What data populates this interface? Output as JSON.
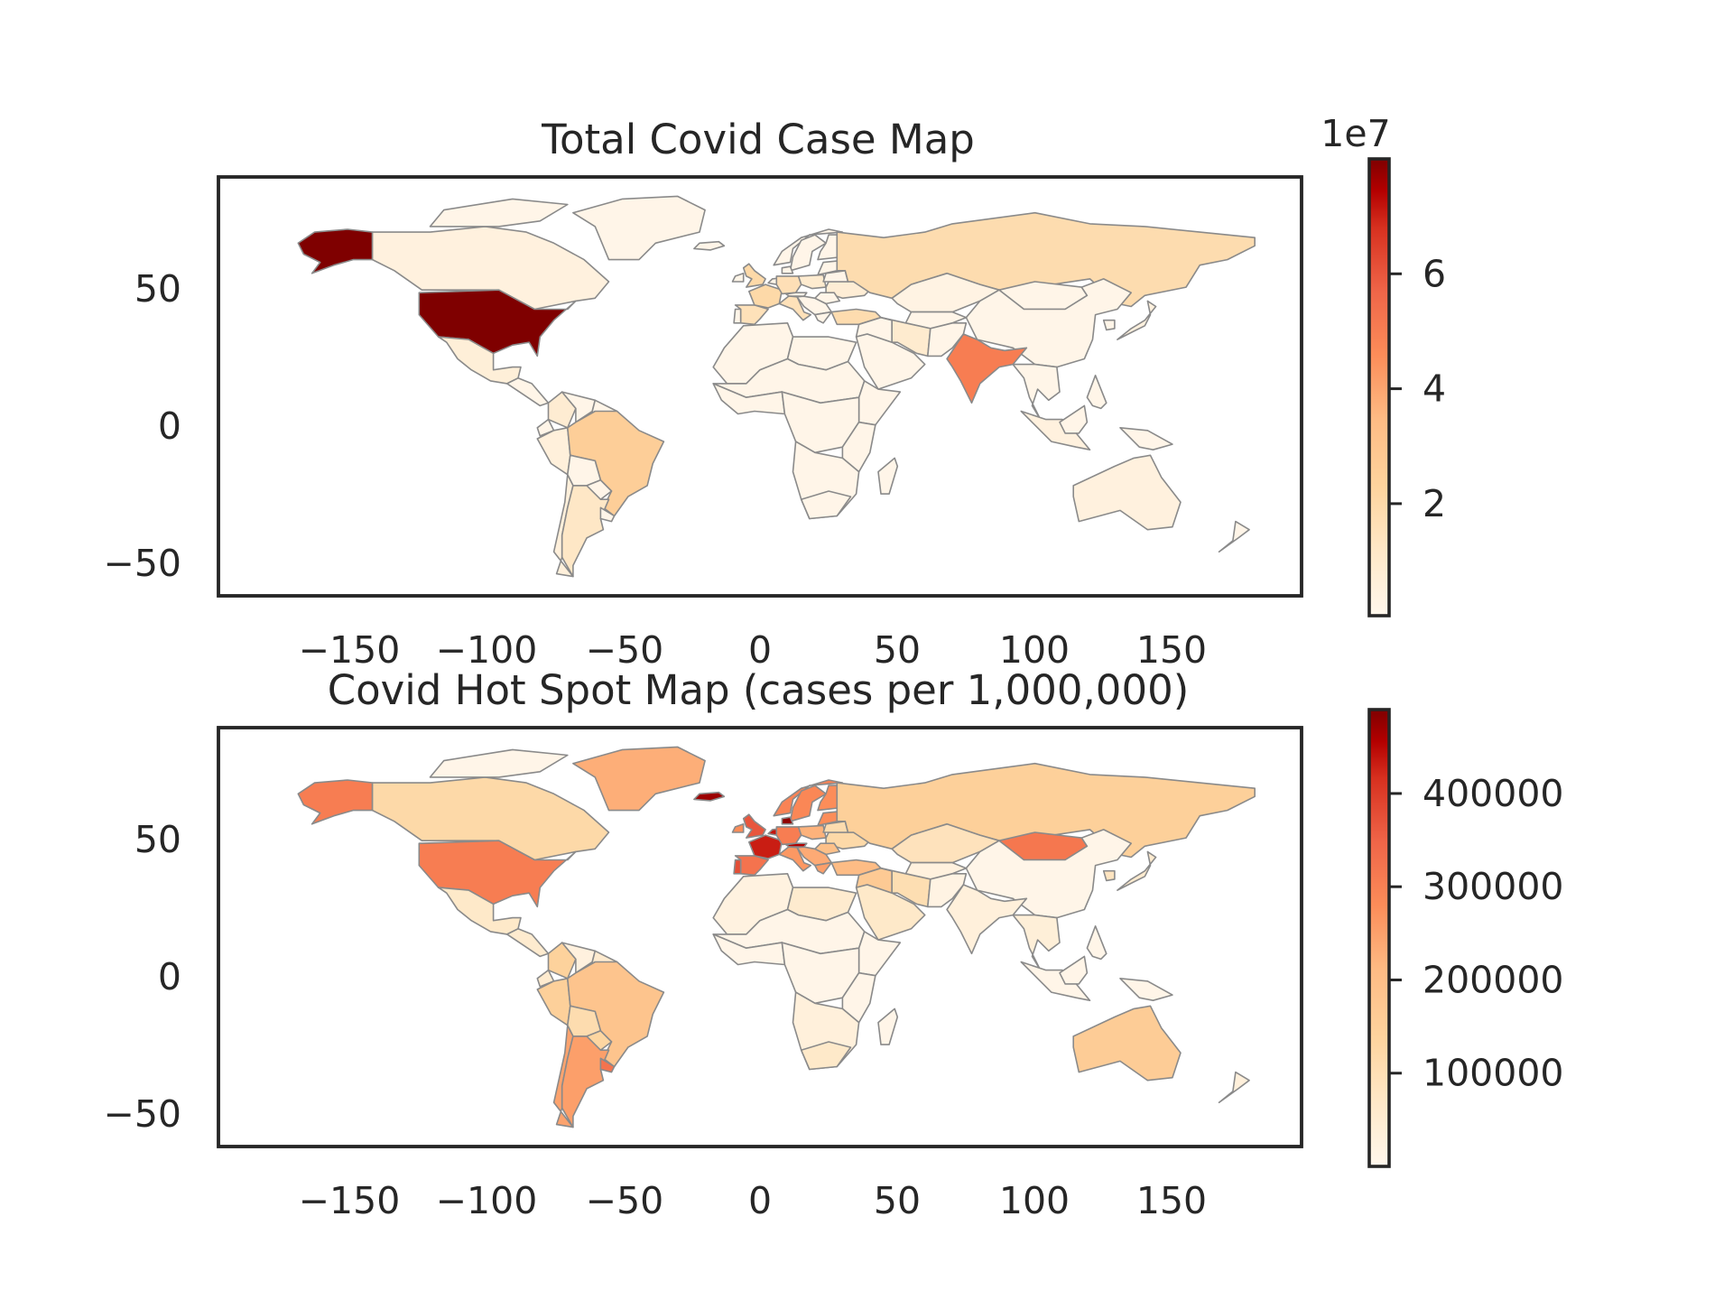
{
  "figure": {
    "colormap": "OrRd",
    "colors": {
      "low": "#fff7ec",
      "q1": "#fee8c8",
      "q2": "#fdd49e",
      "q3": "#fdbb84",
      "q4": "#fc8d59",
      "q5": "#ef6548",
      "q6": "#d7301f",
      "q7": "#b30000",
      "high": "#7f0000",
      "edge": "#8a8a8a",
      "axes": "#262626"
    }
  },
  "maps": [
    {
      "title": "Total Covid Case Map",
      "xticks": [
        "−150",
        "−100",
        "−50",
        "0",
        "50",
        "100",
        "150"
      ],
      "yticks": [
        "50",
        "0",
        "−50"
      ],
      "colorbar": {
        "offset_label": "1e7",
        "ticks": [
          "2",
          "4",
          "6"
        ],
        "tick_values": [
          2,
          4,
          6
        ],
        "range": [
          0.05,
          8
        ]
      }
    },
    {
      "title": "Covid Hot Spot Map (cases per 1,000,000)",
      "xticks": [
        "−150",
        "−100",
        "−50",
        "0",
        "50",
        "100",
        "150"
      ],
      "yticks": [
        "50",
        "0",
        "−50"
      ],
      "colorbar": {
        "offset_label": "",
        "ticks": [
          "100000",
          "200000",
          "300000",
          "400000"
        ],
        "tick_values": [
          100000,
          200000,
          300000,
          400000
        ],
        "range": [
          0,
          490000
        ]
      }
    }
  ],
  "chart_data": [
    {
      "type": "choropleth",
      "title": "Total Covid Case Map",
      "xlim": [
        -197,
        197
      ],
      "ylim": [
        -62,
        90
      ],
      "xticks": [
        -150,
        -100,
        -50,
        0,
        50,
        100,
        150
      ],
      "yticks": [
        50,
        0,
        -50
      ],
      "colorbar_range": [
        0.05,
        8
      ],
      "colorbar_multiplier": "1e7",
      "regions": [
        {
          "name": "United States",
          "value": 8.0
        },
        {
          "name": "Alaska",
          "value": 8.0
        },
        {
          "name": "India",
          "value": 4.3
        },
        {
          "name": "Brazil",
          "value": 2.2
        },
        {
          "name": "Russia",
          "value": 1.4
        },
        {
          "name": "France",
          "value": 1.7
        },
        {
          "name": "United Kingdom",
          "value": 1.7
        },
        {
          "name": "Turkey",
          "value": 1.5
        },
        {
          "name": "Germany",
          "value": 1.3
        },
        {
          "name": "Spain",
          "value": 1.2
        },
        {
          "name": "Italy",
          "value": 1.3
        },
        {
          "name": "Argentina",
          "value": 0.9
        },
        {
          "name": "Colombia",
          "value": 0.6
        },
        {
          "name": "Mexico",
          "value": 0.4
        },
        {
          "name": "Canada",
          "value": 0.3
        },
        {
          "name": "China",
          "value": 0.1
        },
        {
          "name": "Australia",
          "value": 0.3
        },
        {
          "name": "Africa",
          "value": 0.1
        }
      ]
    },
    {
      "type": "choropleth",
      "title": "Covid Hot Spot Map (cases per 1,000,000)",
      "xlim": [
        -197,
        197
      ],
      "ylim": [
        -62,
        90
      ],
      "xticks": [
        -150,
        -100,
        -50,
        0,
        50,
        100,
        150
      ],
      "yticks": [
        50,
        0,
        -50
      ],
      "colorbar_range": [
        0,
        490000
      ],
      "regions": [
        {
          "name": "Iceland",
          "value": 460000
        },
        {
          "name": "Denmark",
          "value": 470000
        },
        {
          "name": "Portugal",
          "value": 330000
        },
        {
          "name": "France",
          "value": 390000
        },
        {
          "name": "Austria",
          "value": 430000
        },
        {
          "name": "Netherlands",
          "value": 400000
        },
        {
          "name": "United Kingdom",
          "value": 320000
        },
        {
          "name": "Spain",
          "value": 280000
        },
        {
          "name": "Finland",
          "value": 240000
        },
        {
          "name": "Sweden",
          "value": 250000
        },
        {
          "name": "Norway",
          "value": 260000
        },
        {
          "name": "United States",
          "value": 265000
        },
        {
          "name": "Mongolia",
          "value": 280000
        },
        {
          "name": "Alaska",
          "value": 265000
        },
        {
          "name": "Argentina",
          "value": 220000
        },
        {
          "name": "Uruguay",
          "value": 280000
        },
        {
          "name": "Greenland",
          "value": 200000
        },
        {
          "name": "Chile",
          "value": 220000
        },
        {
          "name": "Brazil",
          "value": 160000
        },
        {
          "name": "Peru",
          "value": 130000
        },
        {
          "name": "Australia",
          "value": 140000
        },
        {
          "name": "Russia",
          "value": 130000
        },
        {
          "name": "Canada",
          "value": 110000
        },
        {
          "name": "Turkey",
          "value": 180000
        },
        {
          "name": "Iran",
          "value": 90000
        },
        {
          "name": "Kazakhstan",
          "value": 80000
        },
        {
          "name": "Mexico",
          "value": 60000
        },
        {
          "name": "South Africa",
          "value": 60000
        },
        {
          "name": "India",
          "value": 30000
        },
        {
          "name": "China",
          "value": 1000
        },
        {
          "name": "Africa",
          "value": 5000
        }
      ]
    }
  ]
}
